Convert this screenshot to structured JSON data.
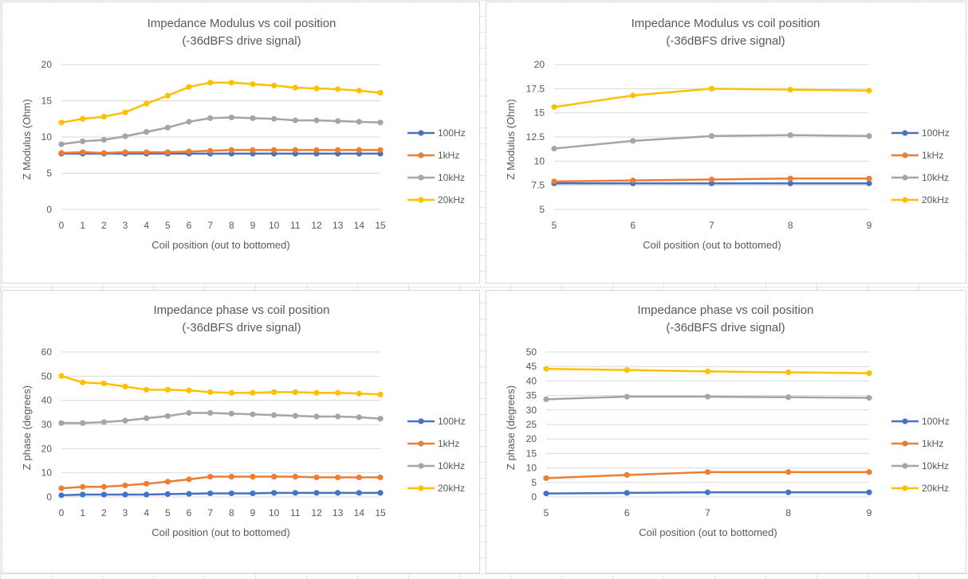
{
  "colors": {
    "100Hz": "#4472c4",
    "1kHz": "#ed7d31",
    "10kHz": "#a5a5a5",
    "20kHz": "#ffc000"
  },
  "chart_data": [
    {
      "type": "line",
      "title": "Impedance Modulus vs coil position",
      "subtitle": "(-36dBFS drive signal)",
      "xlabel": "Coil position (out to bottomed)",
      "ylabel": "Z Modulus (Ohm)",
      "x": [
        0,
        1,
        2,
        3,
        4,
        5,
        6,
        7,
        8,
        9,
        10,
        11,
        12,
        13,
        14,
        15
      ],
      "ylim": [
        0,
        20
      ],
      "yticks": [
        0,
        5,
        10,
        15,
        20
      ],
      "ytick_labels": [
        "0",
        "5",
        "10",
        "15",
        "20"
      ],
      "legend": "right",
      "series": [
        {
          "name": "100Hz",
          "values": [
            7.7,
            7.7,
            7.7,
            7.7,
            7.7,
            7.7,
            7.7,
            7.7,
            7.7,
            7.7,
            7.7,
            7.7,
            7.7,
            7.7,
            7.7,
            7.7
          ]
        },
        {
          "name": "1kHz",
          "values": [
            7.8,
            7.9,
            7.8,
            7.9,
            7.9,
            7.9,
            8.0,
            8.1,
            8.2,
            8.2,
            8.2,
            8.2,
            8.2,
            8.2,
            8.2,
            8.2
          ]
        },
        {
          "name": "10kHz",
          "values": [
            9.0,
            9.4,
            9.6,
            10.1,
            10.7,
            11.3,
            12.1,
            12.6,
            12.7,
            12.6,
            12.5,
            12.3,
            12.3,
            12.2,
            12.1,
            12.0
          ]
        },
        {
          "name": "20kHz",
          "values": [
            12.0,
            12.5,
            12.8,
            13.4,
            14.6,
            15.7,
            16.9,
            17.5,
            17.5,
            17.3,
            17.1,
            16.8,
            16.7,
            16.6,
            16.4,
            16.1
          ]
        }
      ]
    },
    {
      "type": "line",
      "title": "Impedance Modulus vs coil position",
      "subtitle": "(-36dBFS drive signal)",
      "xlabel": "Coil position (out to bottomed)",
      "ylabel": "Z Modulus (Ohm)",
      "x": [
        5,
        6,
        7,
        8,
        9
      ],
      "ylim": [
        5,
        20
      ],
      "yticks": [
        5,
        7.5,
        10,
        12.5,
        15,
        17.5,
        20
      ],
      "ytick_labels": [
        "5",
        "7.5",
        "10",
        "12.5",
        "15",
        "17.5",
        "20"
      ],
      "legend": "right",
      "series": [
        {
          "name": "100Hz",
          "values": [
            7.7,
            7.7,
            7.7,
            7.7,
            7.7
          ]
        },
        {
          "name": "1kHz",
          "values": [
            7.9,
            8.0,
            8.1,
            8.2,
            8.2
          ]
        },
        {
          "name": "10kHz",
          "values": [
            11.3,
            12.1,
            12.6,
            12.7,
            12.6
          ]
        },
        {
          "name": "20kHz",
          "values": [
            15.6,
            16.8,
            17.5,
            17.4,
            17.3
          ]
        }
      ]
    },
    {
      "type": "line",
      "title": "Impedance phase vs coil position",
      "subtitle": "(-36dBFS drive signal)",
      "xlabel": "Coil position (out to bottomed)",
      "ylabel": "Z phase (degrees)",
      "x": [
        0,
        1,
        2,
        3,
        4,
        5,
        6,
        7,
        8,
        9,
        10,
        11,
        12,
        13,
        14,
        15
      ],
      "ylim": [
        0,
        60
      ],
      "yticks": [
        0,
        10,
        20,
        30,
        40,
        50,
        60
      ],
      "ytick_labels": [
        "0",
        "10",
        "20",
        "30",
        "40",
        "50",
        "60"
      ],
      "legend": "right",
      "series": [
        {
          "name": "100Hz",
          "values": [
            0.7,
            1.0,
            1.0,
            1.0,
            1.0,
            1.2,
            1.3,
            1.5,
            1.5,
            1.5,
            1.7,
            1.7,
            1.7,
            1.7,
            1.7,
            1.7
          ]
        },
        {
          "name": "1kHz",
          "values": [
            3.6,
            4.2,
            4.2,
            4.8,
            5.5,
            6.3,
            7.3,
            8.4,
            8.4,
            8.4,
            8.4,
            8.4,
            8.1,
            8.1,
            8.1,
            8.1
          ]
        },
        {
          "name": "10kHz",
          "values": [
            30.6,
            30.6,
            31.0,
            31.6,
            32.6,
            33.5,
            34.8,
            34.8,
            34.5,
            34.2,
            33.9,
            33.6,
            33.3,
            33.3,
            33.0,
            32.4
          ]
        },
        {
          "name": "20kHz",
          "values": [
            50.1,
            47.4,
            47.0,
            45.7,
            44.4,
            44.4,
            44.1,
            43.4,
            43.1,
            43.1,
            43.4,
            43.4,
            43.1,
            43.1,
            42.8,
            42.4
          ]
        }
      ]
    },
    {
      "type": "line",
      "title": "Impedance phase vs coil position",
      "subtitle": "(-36dBFS drive signal)",
      "xlabel": "Coil position (out to bottomed)",
      "ylabel": "Z phase (degrees)",
      "x": [
        5,
        6,
        7,
        8,
        9
      ],
      "ylim": [
        0,
        50
      ],
      "yticks": [
        0,
        5,
        10,
        15,
        20,
        25,
        30,
        35,
        40,
        45,
        50
      ],
      "ytick_labels": [
        "0",
        "5",
        "10",
        "15",
        "20",
        "25",
        "30",
        "35",
        "40",
        "45",
        "50"
      ],
      "legend": "right",
      "series": [
        {
          "name": "100Hz",
          "values": [
            1.2,
            1.4,
            1.6,
            1.6,
            1.6
          ]
        },
        {
          "name": "1kHz",
          "values": [
            6.5,
            7.6,
            8.6,
            8.6,
            8.6
          ]
        },
        {
          "name": "10kHz",
          "values": [
            33.7,
            34.6,
            34.6,
            34.4,
            34.2
          ]
        },
        {
          "name": "20kHz",
          "values": [
            44.2,
            43.8,
            43.3,
            43.0,
            42.7
          ]
        }
      ]
    }
  ]
}
